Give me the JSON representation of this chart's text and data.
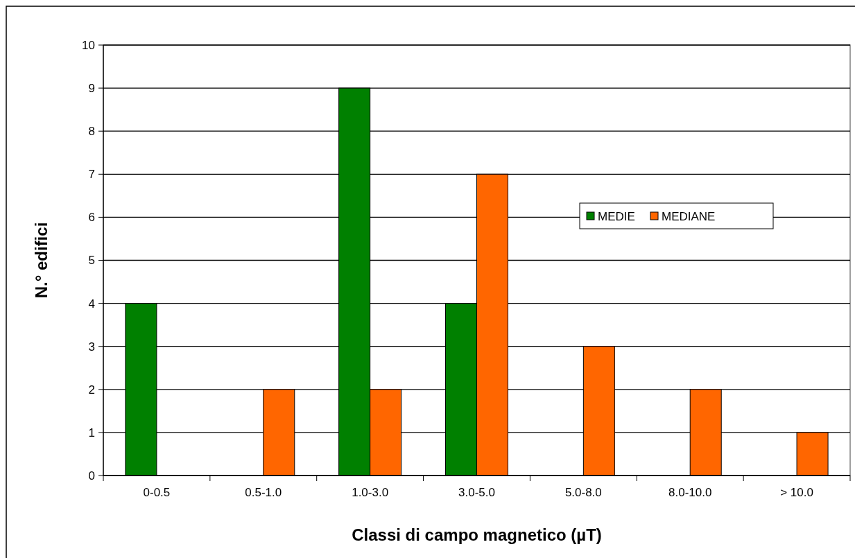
{
  "chart_data": {
    "type": "bar",
    "xlabel": "Classi di campo magnetico (µT)",
    "ylabel": "N.° edifici",
    "categories": [
      "0-0.5",
      "0.5-1.0",
      "1.0-3.0",
      "3.0-5.0",
      "5.0-8.0",
      "8.0-10.0",
      "> 10.0"
    ],
    "series": [
      {
        "name": "MEDIE",
        "color": "#008000",
        "values": [
          4,
          0,
          9,
          4,
          0,
          0,
          0
        ]
      },
      {
        "name": "MEDIANE",
        "color": "#ff6600",
        "values": [
          0,
          2,
          2,
          7,
          3,
          2,
          1
        ]
      }
    ],
    "ylim": [
      0,
      10
    ],
    "yticks": [
      0,
      1,
      2,
      3,
      4,
      5,
      6,
      7,
      8,
      9,
      10
    ],
    "grid": "y",
    "legend": "right"
  }
}
